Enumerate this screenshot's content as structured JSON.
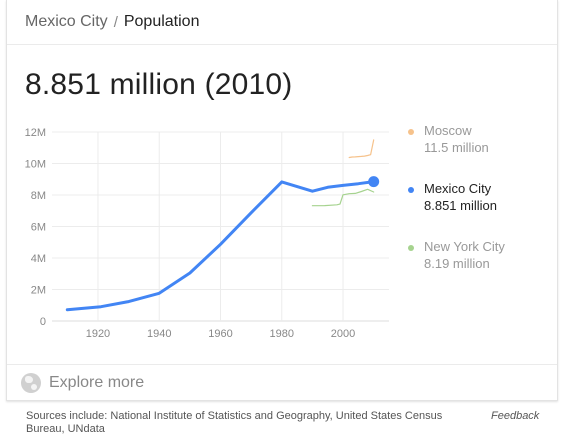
{
  "breadcrumb": {
    "parent": "Mexico City",
    "separator": "/",
    "current": "Population"
  },
  "headline": "8.851 million (2010)",
  "legend": [
    {
      "name": "Moscow",
      "value": "11.5 million",
      "color": "#f6c28b",
      "highlighted": false
    },
    {
      "name": "Mexico City",
      "value": "8.851 million",
      "color": "#4285f4",
      "highlighted": true
    },
    {
      "name": "New York City",
      "value": "8.19 million",
      "color": "#a6d38f",
      "highlighted": false
    }
  ],
  "explore_label": "Explore more",
  "sources": "Sources include: National Institute of Statistics and Geography, United States Census Bureau, UNdata",
  "feedback_label": "Feedback",
  "chart_data": {
    "type": "line",
    "xlim": [
      1905,
      2015
    ],
    "ylim": [
      0,
      12000000
    ],
    "x_ticks": [
      1920,
      1940,
      1960,
      1980,
      2000
    ],
    "x_tick_labels": [
      "1920",
      "1940",
      "1960",
      "1980",
      "2000"
    ],
    "y_ticks": [
      0,
      2000000,
      4000000,
      6000000,
      8000000,
      10000000,
      12000000
    ],
    "y_tick_labels": [
      "0",
      "2M",
      "4M",
      "6M",
      "8M",
      "10M",
      "12M"
    ],
    "grid": true,
    "series": [
      {
        "name": "Mexico City",
        "color": "#4285f4",
        "x": [
          1910,
          1921,
          1930,
          1940,
          1950,
          1960,
          1970,
          1980,
          1990,
          1995,
          2000,
          2005,
          2010
        ],
        "y": [
          720000,
          910000,
          1230000,
          1760000,
          3050000,
          4870000,
          6870000,
          8830000,
          8240000,
          8490000,
          8610000,
          8720000,
          8851000
        ],
        "end_marker": true
      },
      {
        "name": "Moscow",
        "color": "#f6c28b",
        "x": [
          2002,
          2003,
          2004,
          2005,
          2006,
          2007,
          2008,
          2009,
          2010
        ],
        "y": [
          10380000,
          10410000,
          10420000,
          10440000,
          10450000,
          10470000,
          10510000,
          10560000,
          11500000
        ]
      },
      {
        "name": "New York City",
        "color": "#a6d38f",
        "x": [
          1990,
          1994,
          1998,
          1999,
          2000,
          2002,
          2004,
          2006,
          2008,
          2010
        ],
        "y": [
          7320000,
          7330000,
          7380000,
          7420000,
          8010000,
          8080000,
          8100000,
          8220000,
          8360000,
          8190000
        ]
      }
    ]
  }
}
